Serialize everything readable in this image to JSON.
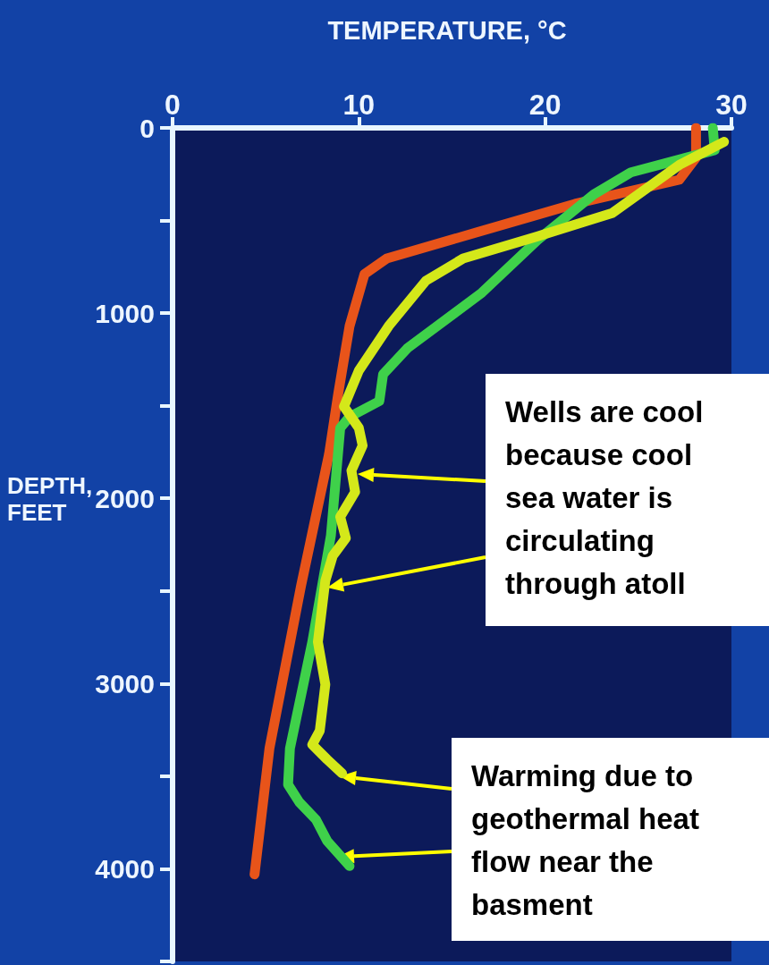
{
  "chart_data": {
    "type": "line",
    "title": "TEMPERATURE, °C",
    "ylabel": "DEPTH, FEET",
    "xlim": [
      0,
      30
    ],
    "xticks": [
      0,
      10,
      20,
      30
    ],
    "ylim": [
      4500,
      0
    ],
    "yticks": [
      0,
      {
        "value": 500,
        "label": null
      },
      1000,
      {
        "value": 1500,
        "label": null
      },
      2000,
      {
        "value": 2500,
        "label": null
      },
      3000,
      {
        "value": 3500,
        "label": null
      },
      4000,
      {
        "value": 4500,
        "label": null
      }
    ],
    "marker": "none",
    "line_style": "solid",
    "series": [
      {
        "color": "#e8541a",
        "x": [
          28.1,
          28.1,
          27.2,
          21.6,
          11.5,
          10.3,
          9.5,
          8.9,
          8.4,
          6.9,
          5.2,
          4.4
        ],
        "values": [
          0,
          160,
          280,
          410,
          705,
          790,
          1070,
          1430,
          1760,
          2470,
          3350,
          4030
        ]
      },
      {
        "color": "#3fd14a",
        "x": [
          29,
          29.1,
          24.6,
          22.6,
          19.6,
          16.6,
          12.6,
          11.3,
          11.1,
          9.5,
          9.0,
          8.5,
          7.5,
          6.3,
          6.2,
          6.8,
          7.7,
          8.3,
          9.5
        ],
        "values": [
          0,
          120,
          240,
          360,
          605,
          890,
          1190,
          1330,
          1475,
          1560,
          1620,
          2200,
          2775,
          3350,
          3545,
          3640,
          3735,
          3850,
          3985
        ]
      },
      {
        "color": "#d4e81a",
        "x": [
          29.6,
          27.2,
          23.6,
          19.6,
          15.6,
          13.6,
          11.6,
          10,
          9.2,
          10,
          10.2,
          9.6,
          9.8,
          9.0,
          9.3,
          8.6,
          8.2,
          7.8,
          8.2,
          7.9,
          7.5,
          8.3,
          9.1
        ],
        "values": [
          75,
          200,
          460,
          585,
          705,
          825,
          1070,
          1310,
          1505,
          1620,
          1715,
          1850,
          1965,
          2100,
          2215,
          2310,
          2445,
          2775,
          3005,
          3255,
          3330,
          3410,
          3485
        ]
      }
    ],
    "annotations": [
      "Wells are cool\nbecause cool\nsea water is\ncirculating\nthrough atoll",
      "Warming due to\ngeothermal heat\nflow near the\nbasment"
    ]
  }
}
